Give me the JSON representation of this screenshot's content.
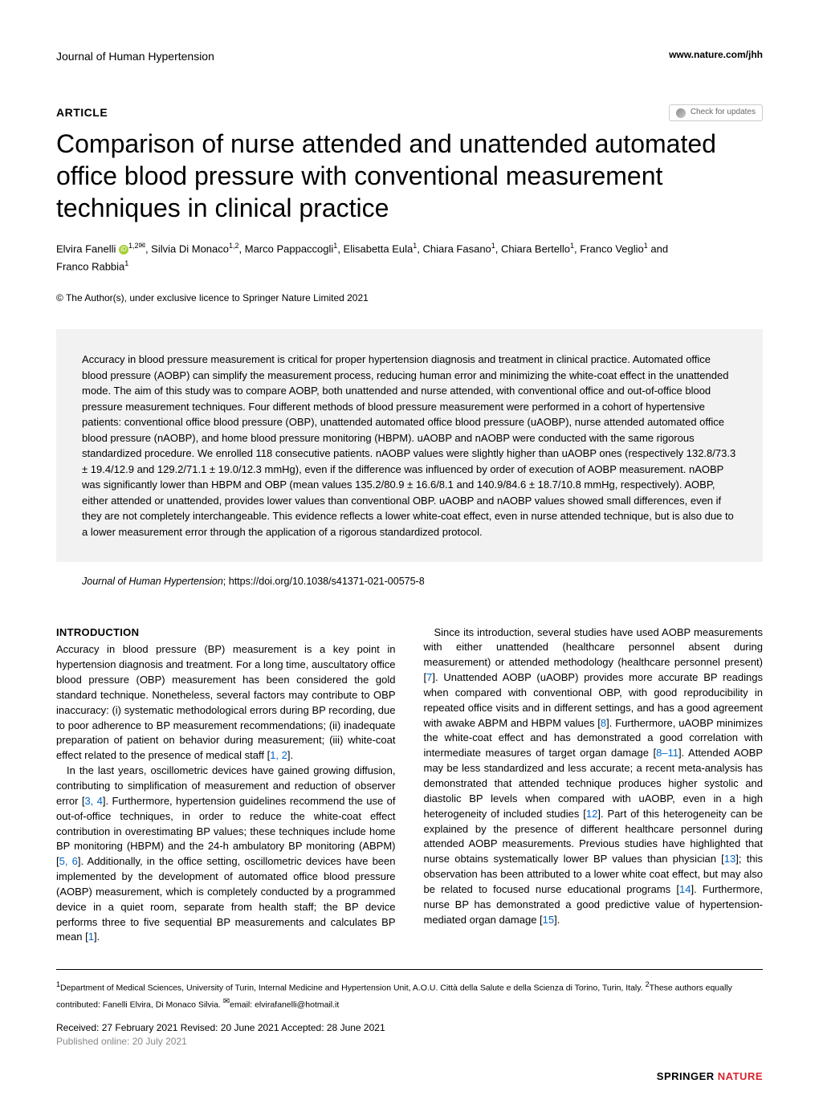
{
  "header": {
    "journal": "Journal of Human Hypertension",
    "url": "www.nature.com/jhh"
  },
  "article_meta": {
    "label": "ARTICLE",
    "check_updates": "Check for updates"
  },
  "title": "Comparison of nurse attended and unattended automated office blood pressure with conventional measurement techniques in clinical practice",
  "authors": {
    "line1_pre": "Elvira Fanelli",
    "aff1": "1,2",
    "line1_mid": ", Silvia Di Monaco",
    "aff2": "1,2",
    "line1_rest": ", Marco Pappaccogli",
    "aff3": "1",
    "line1_e": ", Elisabetta Eula",
    "line1_c": ", Chiara Fasano",
    "line1_cb": ", Chiara Bertello",
    "line1_fv": ", Franco Veglio",
    "line1_and": " and",
    "line2": "Franco Rabbia",
    "aff_last": "1"
  },
  "copyright": "© The Author(s), under exclusive licence to Springer Nature Limited 2021",
  "abstract": "Accuracy in blood pressure measurement is critical for proper hypertension diagnosis and treatment in clinical practice. Automated office blood pressure (AOBP) can simplify the measurement process, reducing human error and minimizing the white-coat effect in the unattended mode. The aim of this study was to compare AOBP, both unattended and nurse attended, with conventional office and out-of-office blood pressure measurement techniques. Four different methods of blood pressure measurement were performed in a cohort of hypertensive patients: conventional office blood pressure (OBP), unattended automated office blood pressure (uAOBP), nurse attended automated office blood pressure (nAOBP), and home blood pressure monitoring (HBPM). uAOBP and nAOBP were conducted with the same rigorous standardized procedure. We enrolled 118 consecutive patients. nAOBP values were slightly higher than uAOBP ones (respectively 132.8/73.3 ± 19.4/12.9 and 129.2/71.1 ± 19.0/12.3 mmHg), even if the difference was influenced by order of execution of AOBP measurement. nAOBP was significantly lower than HBPM and OBP (mean values 135.2/80.9 ± 16.6/8.1 and 140.9/84.6 ± 18.7/10.8 mmHg, respectively). AOBP, either attended or unattended, provides lower values than conventional OBP. uAOBP and nAOBP values showed small differences, even if they are not completely interchangeable. This evidence reflects a lower white-coat effect, even in nurse attended technique, but is also due to a lower measurement error through the application of a rigorous standardized protocol.",
  "citation": {
    "journal_italic": "Journal of Human Hypertension",
    "doi": "; https://doi.org/10.1038/s41371-021-00575-8"
  },
  "intro_heading": "INTRODUCTION",
  "intro_col1_p1": "Accuracy in blood pressure (BP) measurement is a key point in hypertension diagnosis and treatment. For a long time, auscultatory office blood pressure (OBP) measurement has been considered the gold standard technique. Nonetheless, several factors may contribute to OBP inaccuracy: (i) systematic methodological errors during BP recording, due to poor adherence to BP measurement recommendations; (ii) inadequate preparation of patient on behavior during measurement; (iii) white-coat effect related to the presence of medical staff [",
  "ref_1_2": "1, 2",
  "intro_col1_p1_end": "].",
  "intro_col1_p2": "In the last years, oscillometric devices have gained growing diffusion, contributing to simplification of measurement and reduction of observer error [",
  "ref_3_4": "3, 4",
  "intro_col1_p2_mid": "]. Furthermore, hypertension guidelines recommend the use of out-of-office techniques, in order to reduce the white-coat effect contribution in overestimating BP values; these techniques include home BP monitoring (HBPM) and the 24-h ambulatory BP monitoring (ABPM) [",
  "ref_5_6": "5, 6",
  "intro_col1_p2_mid2": "]. Additionally, in the office setting, oscillometric devices have been implemented by the development of automated office blood pressure (AOBP) measurement, which is completely conducted by a programmed device in a quiet room, separate from health staff; the BP device performs three to five sequential BP measurements and calculates BP mean [",
  "ref_1": "1",
  "intro_col1_p2_end": "].",
  "intro_col2_p1_a": "Since its introduction, several studies have used AOBP measurements with either unattended (healthcare personnel absent during measurement) or attended methodology (healthcare personnel present) [",
  "ref_7": "7",
  "intro_col2_p1_b": "]. Unattended AOBP (uAOBP) provides more accurate BP readings when compared with conventional OBP, with good reproducibility in repeated office visits and in different settings, and has a good agreement with awake ABPM and HBPM values [",
  "ref_8": "8",
  "intro_col2_p1_c": "]. Furthermore, uAOBP minimizes the white-coat effect and has demonstrated a good correlation with intermediate measures of target organ damage [",
  "ref_8_11": "8–11",
  "intro_col2_p1_d": "]. Attended AOBP may be less standardized and less accurate; a recent meta-analysis has demonstrated that attended technique produces higher systolic and diastolic BP levels when compared with uAOBP, even in a high heterogeneity of included studies [",
  "ref_12": "12",
  "intro_col2_p1_e": "]. Part of this heterogeneity can be explained by the presence of different healthcare personnel during attended AOBP measurements. Previous studies have highlighted that nurse obtains systematically lower BP values than physician [",
  "ref_13": "13",
  "intro_col2_p1_f": "]; this observation has been attributed to a lower white coat effect, but may also be related to focused nurse educational programs [",
  "ref_14": "14",
  "intro_col2_p1_g": "]. Furthermore, nurse BP has demonstrated a good predictive value of hypertension-mediated organ damage [",
  "ref_15": "15",
  "intro_col2_p1_h": "].",
  "affiliations": {
    "sup1": "1",
    "text1": "Department of Medical Sciences, University of Turin, Internal Medicine and Hypertension Unit, A.O.U. Città della Salute e della Scienza di Torino, Turin, Italy. ",
    "sup2": "2",
    "text2": "These authors equally contributed: Fanelli Elvira, Di Monaco Silvia. ",
    "email_label": "email: ",
    "email": "elvirafanelli@hotmail.it"
  },
  "dates": {
    "received": "Received: 27 February 2021 Revised: 20 June 2021 Accepted: 28 June 2021",
    "published": "Published online: 20 July 2021"
  },
  "footer": {
    "springer": "SPRINGER ",
    "nature": "NATURE"
  }
}
